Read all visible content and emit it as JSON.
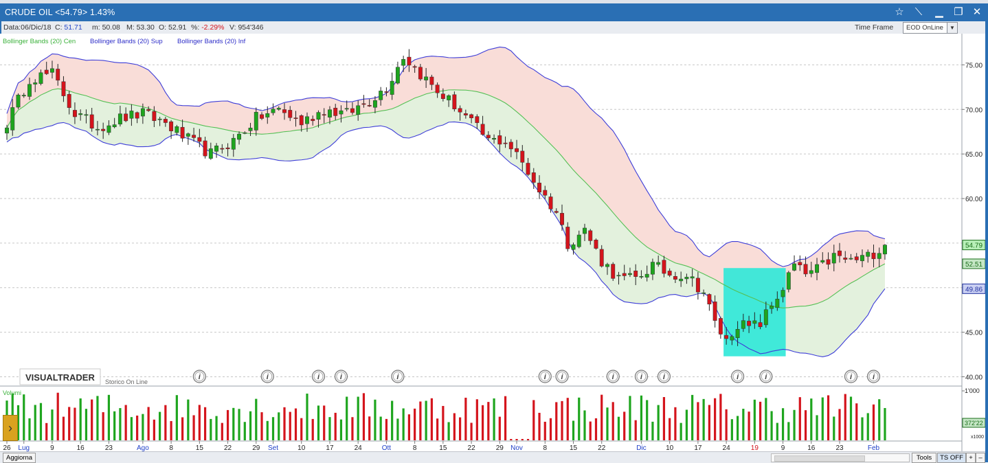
{
  "window": {
    "title": "CRUDE OIL <54.79> 1.43%",
    "buttons": [
      "star-icon",
      "pin-icon",
      "minimize-icon",
      "maximize-icon",
      "close-icon"
    ]
  },
  "info": {
    "date_label": "Data:",
    "date_value": "06/Dic/18",
    "close_label": "C:",
    "close_value": "51.71",
    "min_label": "m:",
    "min_value": "50.08",
    "max_label": "M:",
    "max_value": "53.30",
    "open_label": "O:",
    "open_value": "52.91",
    "pct_label": "%:",
    "pct_value": "-2.29%",
    "vol_label": "V:",
    "vol_value": "954'346",
    "timeframe_label": "Time Frame",
    "timeframe_value": "EOD OnLine"
  },
  "legend": {
    "cen": "Bollinger Bands (20) Cen",
    "sup": "Bollinger Bands (20) Sup",
    "inf": "Bollinger Bands (20) Inf"
  },
  "brand": {
    "logo": "VISUALTRADER",
    "storico": "Storico On Line"
  },
  "colors": {
    "up": "#1ea51e",
    "down": "#d4141c",
    "band_line": "#3d3dd8",
    "center_line": "#55c055",
    "upper_fill": "#f9ddd8",
    "lower_fill": "#e3f1dd",
    "highlight": "#2ee8d8",
    "titlebar": "#2a6fb4"
  },
  "chart_data": {
    "type": "candlestick",
    "y_ticks": [
      "75.00",
      "70.00",
      "65.00",
      "60.00",
      "55.00",
      "50.00",
      "45.00",
      "40.00"
    ],
    "ylim": [
      39.5,
      78.5
    ],
    "price_labels": {
      "last": "54.79",
      "center": "52.51",
      "lower": "49.86"
    },
    "volume_label": "Volumi",
    "volume_ticks": [
      "1'000"
    ],
    "volume_value_label": "372'22",
    "volume_unit": "x1000",
    "x_ticks": [
      {
        "label": "26",
        "i": 0
      },
      {
        "label": "Lug",
        "i": 3,
        "month": true
      },
      {
        "label": "9",
        "i": 8
      },
      {
        "label": "16",
        "i": 13
      },
      {
        "label": "23",
        "i": 18
      },
      {
        "label": "Ago",
        "i": 24,
        "month": true
      },
      {
        "label": "8",
        "i": 29
      },
      {
        "label": "15",
        "i": 34
      },
      {
        "label": "22",
        "i": 39
      },
      {
        "label": "29",
        "i": 44
      },
      {
        "label": "Set",
        "i": 47,
        "month": true
      },
      {
        "label": "10",
        "i": 52
      },
      {
        "label": "17",
        "i": 57
      },
      {
        "label": "24",
        "i": 62
      },
      {
        "label": "Ott",
        "i": 67,
        "month": true
      },
      {
        "label": "8",
        "i": 72
      },
      {
        "label": "15",
        "i": 77
      },
      {
        "label": "22",
        "i": 82
      },
      {
        "label": "29",
        "i": 87
      },
      {
        "label": "Nov",
        "i": 90,
        "month": true
      },
      {
        "label": "8",
        "i": 95
      },
      {
        "label": "15",
        "i": 100
      },
      {
        "label": "22",
        "i": 105
      },
      {
        "label": "Dic",
        "i": 112,
        "month": true
      },
      {
        "label": "10",
        "i": 117
      },
      {
        "label": "17",
        "i": 122
      },
      {
        "label": "24",
        "i": 127
      },
      {
        "label": "19",
        "i": 132,
        "red": true
      },
      {
        "label": "9",
        "i": 137
      },
      {
        "label": "16",
        "i": 142
      },
      {
        "label": "23",
        "i": 147
      },
      {
        "label": "Feb",
        "i": 153,
        "month": true
      }
    ],
    "info_icons_at": [
      34,
      46,
      55,
      59,
      69,
      95,
      98,
      107,
      112,
      116,
      129,
      134,
      149,
      153
    ],
    "highlight_range": {
      "from": 127,
      "to": 137,
      "y_top": 52.2,
      "y_bottom": 42.3
    },
    "keypoints": [
      [
        0,
        68.5
      ],
      [
        4,
        73.5
      ],
      [
        8,
        74.0
      ],
      [
        12,
        69.5
      ],
      [
        16,
        68.0
      ],
      [
        20,
        69.0
      ],
      [
        24,
        69.5
      ],
      [
        28,
        68.5
      ],
      [
        31,
        67.0
      ],
      [
        36,
        65.0
      ],
      [
        40,
        66.5
      ],
      [
        44,
        69.0
      ],
      [
        48,
        70.0
      ],
      [
        52,
        68.5
      ],
      [
        56,
        70.0
      ],
      [
        60,
        69.5
      ],
      [
        64,
        71.0
      ],
      [
        67,
        72.5
      ],
      [
        70,
        76.0
      ],
      [
        73,
        74.0
      ],
      [
        76,
        72.0
      ],
      [
        79,
        70.5
      ],
      [
        82,
        68.5
      ],
      [
        85,
        66.5
      ],
      [
        88,
        66.5
      ],
      [
        91,
        64.0
      ],
      [
        94,
        61.0
      ],
      [
        97,
        58.5
      ],
      [
        99,
        55.0
      ],
      [
        102,
        56.5
      ],
      [
        105,
        53.0
      ],
      [
        108,
        51.0
      ],
      [
        111,
        51.0
      ],
      [
        114,
        52.5
      ],
      [
        117,
        51.5
      ],
      [
        120,
        51.5
      ],
      [
        123,
        49.5
      ],
      [
        125,
        46.0
      ],
      [
        127,
        44.0
      ],
      [
        129,
        46.0
      ],
      [
        131,
        45.5
      ],
      [
        133,
        46.0
      ],
      [
        135,
        48.0
      ],
      [
        137,
        50.0
      ],
      [
        139,
        52.5
      ],
      [
        141,
        51.5
      ],
      [
        143,
        52.0
      ],
      [
        146,
        53.5
      ],
      [
        149,
        53.0
      ],
      [
        152,
        53.5
      ],
      [
        155,
        54.79
      ]
    ],
    "candle_count": 156
  },
  "footer": {
    "aggiorna": "Aggiorna",
    "tools": "Tools",
    "ts_off": "TS OFF",
    "plus": "+",
    "minus": "–"
  }
}
